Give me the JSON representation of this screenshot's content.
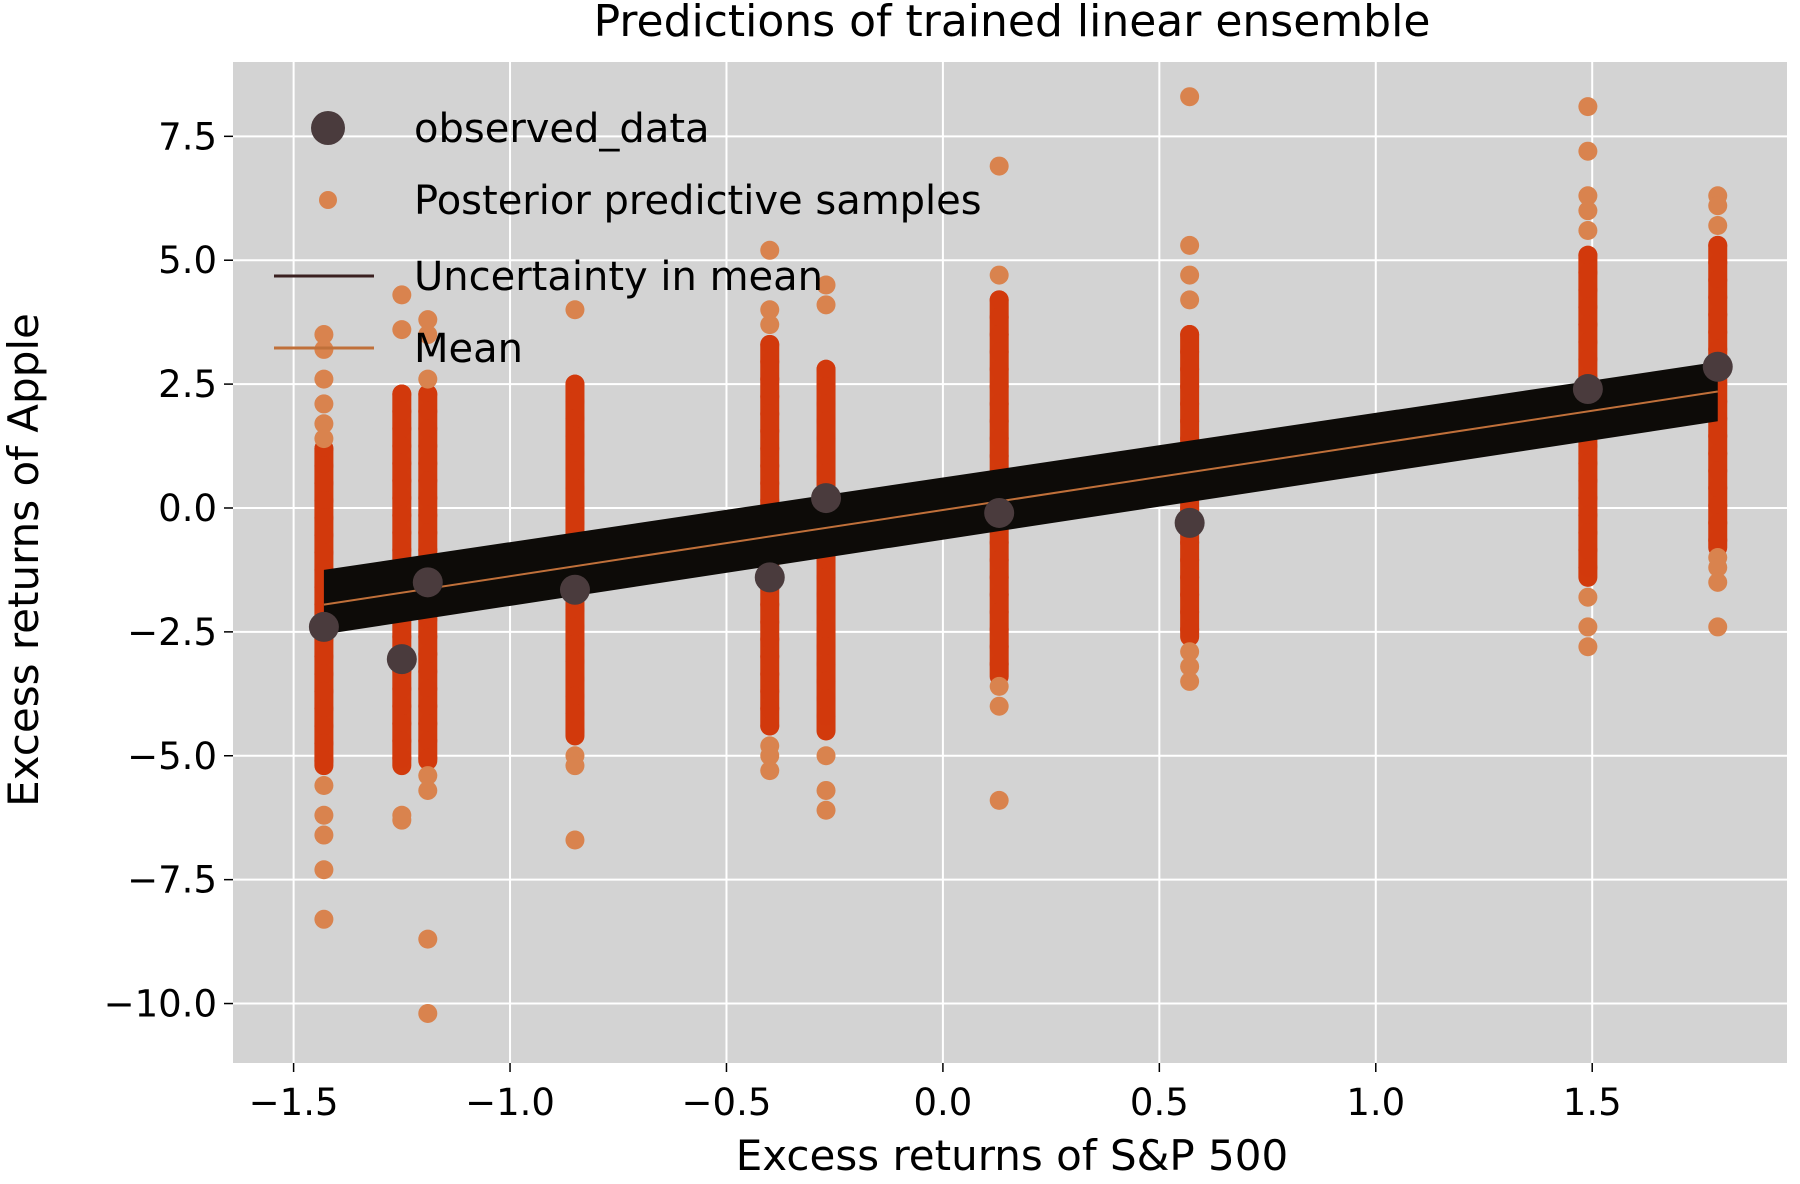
{
  "chart_data": {
    "type": "scatter",
    "title": "Predictions of trained linear ensemble",
    "xlabel": "Excess returns of S&P 500",
    "ylabel": "Excess returns of Apple",
    "xlim": [
      -1.64,
      1.95
    ],
    "ylim": [
      -11.2,
      9.0
    ],
    "xticks": [
      -1.5,
      -1.0,
      -0.5,
      0.0,
      0.5,
      1.0,
      1.5
    ],
    "xtick_labels": [
      "−1.5",
      "−1.0",
      "−0.5",
      "0.0",
      "0.5",
      "1.0",
      "1.5"
    ],
    "yticks": [
      7.5,
      5.0,
      2.5,
      0.0,
      -2.5,
      -5.0,
      -7.5,
      -10.0
    ],
    "ytick_labels": [
      "7.5",
      "5.0",
      "2.5",
      "0.0",
      "−2.5",
      "−5.0",
      "−7.5",
      "−10.0"
    ],
    "grid": true,
    "legend_position": "top-left",
    "legend": [
      {
        "label": "observed_data",
        "marker": "large-circle",
        "color": "#4a3b3d"
      },
      {
        "label": "Posterior predictive samples",
        "marker": "small-circle",
        "color": "#d9834e"
      },
      {
        "label": "Uncertainty in mean",
        "marker": "line",
        "color": "#3a2020"
      },
      {
        "label": "Mean",
        "marker": "line",
        "color": "#c0703a"
      }
    ],
    "colors": {
      "background": "#d3d3d3",
      "grid": "#ffffff",
      "observed": "#4a3b3d",
      "samples_core": "#d23a0c",
      "samples_outlier": "#d9834e",
      "band": "#0d0b08",
      "mean": "#c0703a"
    },
    "observed_data": {
      "x": [
        -1.43,
        -1.25,
        -1.19,
        -0.85,
        -0.4,
        -0.27,
        0.13,
        0.57,
        1.49,
        1.79
      ],
      "y": [
        -2.4,
        -3.05,
        -1.5,
        -1.65,
        -1.4,
        0.2,
        -0.1,
        -0.3,
        2.4,
        2.85
      ]
    },
    "posterior_predictive": [
      {
        "x": -1.43,
        "core_range": [
          -5.2,
          1.2
        ],
        "outliers": [
          3.5,
          3.2,
          2.6,
          2.1,
          1.7,
          1.4,
          -5.6,
          -6.2,
          -6.6,
          -7.3,
          -8.3
        ]
      },
      {
        "x": -1.25,
        "core_range": [
          -5.2,
          2.3
        ],
        "outliers": [
          4.3,
          3.6,
          -6.3,
          -6.2
        ]
      },
      {
        "x": -1.19,
        "core_range": [
          -5.1,
          2.3
        ],
        "outliers": [
          3.8,
          3.5,
          2.6,
          -5.4,
          -5.7,
          -8.7,
          -10.2
        ]
      },
      {
        "x": -0.85,
        "core_range": [
          -4.6,
          2.5
        ],
        "outliers": [
          4.0,
          -5.0,
          -5.2,
          -6.7
        ]
      },
      {
        "x": -0.4,
        "core_range": [
          -4.4,
          3.3
        ],
        "outliers": [
          5.2,
          4.0,
          3.7,
          -4.8,
          -5.0,
          -5.3
        ]
      },
      {
        "x": -0.27,
        "core_range": [
          -4.5,
          2.8
        ],
        "outliers": [
          4.5,
          4.1,
          -5.0,
          -5.7,
          -6.1
        ]
      },
      {
        "x": 0.13,
        "core_range": [
          -3.4,
          4.2
        ],
        "outliers": [
          6.9,
          4.7,
          -3.6,
          -4.0,
          -5.9
        ]
      },
      {
        "x": 0.57,
        "core_range": [
          -2.6,
          3.5
        ],
        "outliers": [
          8.3,
          5.3,
          4.7,
          4.2,
          -2.9,
          -3.2,
          -3.5
        ]
      },
      {
        "x": 1.49,
        "core_range": [
          -1.4,
          5.1
        ],
        "outliers": [
          8.1,
          7.2,
          6.3,
          6.0,
          5.6,
          -1.8,
          -2.4,
          -2.8
        ]
      },
      {
        "x": 1.79,
        "core_range": [
          -0.8,
          5.3
        ],
        "outliers": [
          6.3,
          6.1,
          5.7,
          -1.0,
          -1.2,
          -1.5,
          -2.4
        ]
      }
    ],
    "mean_line": {
      "x": [
        -1.43,
        1.79
      ],
      "y": [
        -1.95,
        2.35
      ]
    },
    "uncertainty_band": {
      "x": [
        -1.43,
        1.79
      ],
      "y_upper": [
        -1.25,
        2.95
      ],
      "y_lower": [
        -2.55,
        1.75
      ]
    }
  }
}
